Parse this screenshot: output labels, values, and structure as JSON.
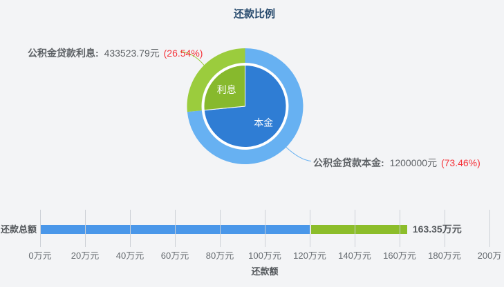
{
  "page": {
    "background": "#f3f4f6"
  },
  "colors": {
    "title_text": "#274a6d",
    "percent_red": "#f5333a",
    "label_text": "#5d6165",
    "tick_text": "#666b70",
    "grid_line": "#ccd0d6"
  },
  "chart_data": [
    {
      "type": "pie",
      "subtype": "nested-donut",
      "title": "还款比例",
      "start_angle_deg": -90,
      "clockwise": true,
      "series": [
        {
          "key": "principal",
          "name": "本金",
          "callout_label": "公积金贷款本金:",
          "callout_value": "1200000元",
          "callout_pct": "(73.46%)",
          "value_yuan": 1200000,
          "pct": 73.46,
          "inner_color": "#2f7dd4",
          "outer_color": "#67b1f2"
        },
        {
          "key": "interest",
          "name": "利息",
          "callout_label": "公积金贷款利息:",
          "callout_value": "433523.79元",
          "callout_pct": "(26.54%)",
          "value_yuan": 433523.79,
          "pct": 26.54,
          "inner_color": "#87b92d",
          "outer_color": "#9bcc3d"
        }
      ]
    },
    {
      "type": "bar",
      "orientation": "horizontal",
      "stacked": true,
      "category": "还款总额",
      "xlabel": "还款额",
      "x_unit": "万元",
      "xlim": [
        0,
        200
      ],
      "x_tick_step": 20,
      "x_tick_labels": [
        "0万元",
        "20万元",
        "40万元",
        "60万元",
        "80万元",
        "100万元",
        "120万元",
        "140万元",
        "160万元",
        "180万元",
        "200万"
      ],
      "series": [
        {
          "key": "principal",
          "name": "本金",
          "value_wan": 120,
          "color": "#4a97e9"
        },
        {
          "key": "interest",
          "name": "利息",
          "value_wan": 43.35,
          "color": "#8cbd2a"
        }
      ],
      "total_wan": 163.35,
      "total_label": "163.35万元"
    }
  ]
}
